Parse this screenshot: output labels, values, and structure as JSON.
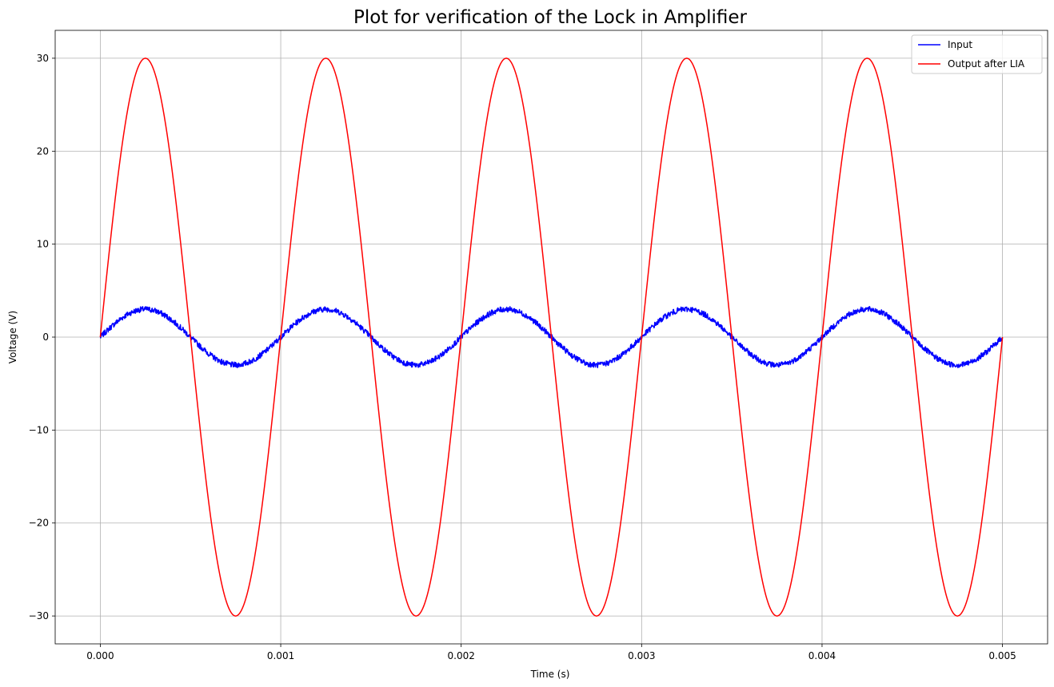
{
  "chart_data": {
    "type": "line",
    "title": "Plot for verification of the Lock in Amplifier",
    "xlabel": "Time (s)",
    "ylabel": "Voltage (V)",
    "xlim": [
      -0.00025,
      0.00525
    ],
    "ylim": [
      -33,
      33
    ],
    "x_ticks": [
      0.0,
      0.001,
      0.002,
      0.003,
      0.004,
      0.005
    ],
    "x_tick_labels": [
      "0.000",
      "0.001",
      "0.002",
      "0.003",
      "0.004",
      "0.005"
    ],
    "y_ticks": [
      -30,
      -20,
      -10,
      0,
      10,
      20,
      30
    ],
    "y_tick_labels": [
      "−30",
      "−20",
      "−10",
      "0",
      "10",
      "20",
      "30"
    ],
    "grid": true,
    "legend_position": "upper-right",
    "x_range": [
      0,
      0.005
    ],
    "series": [
      {
        "name": "Input",
        "color": "#0000ff",
        "waveform": "sine",
        "frequency_hz": 1000,
        "amplitude": 3.0,
        "noise_amplitude": 0.3,
        "sample_points": [
          [
            0.0,
            0.0
          ],
          [
            0.00025,
            3.0
          ],
          [
            0.0005,
            0.0
          ],
          [
            0.00075,
            -3.0
          ],
          [
            0.001,
            0.0
          ],
          [
            0.00125,
            3.0
          ],
          [
            0.0015,
            0.0
          ],
          [
            0.00175,
            -3.0
          ],
          [
            0.002,
            0.0
          ],
          [
            0.00225,
            3.0
          ],
          [
            0.0025,
            0.0
          ],
          [
            0.00275,
            -3.0
          ],
          [
            0.003,
            0.0
          ],
          [
            0.00325,
            3.0
          ],
          [
            0.0035,
            0.0
          ],
          [
            0.00375,
            -3.0
          ],
          [
            0.004,
            0.0
          ],
          [
            0.00425,
            3.0
          ],
          [
            0.0045,
            0.0
          ],
          [
            0.00475,
            -3.0
          ],
          [
            0.005,
            0.0
          ]
        ]
      },
      {
        "name": "Output after LIA",
        "color": "#ff0000",
        "waveform": "sine",
        "frequency_hz": 1000,
        "amplitude": 30.0,
        "noise_amplitude": 0,
        "sample_points": [
          [
            0.0,
            0.0
          ],
          [
            0.00025,
            30.0
          ],
          [
            0.0005,
            0.0
          ],
          [
            0.00075,
            -30.0
          ],
          [
            0.001,
            0.0
          ],
          [
            0.00125,
            30.0
          ],
          [
            0.0015,
            0.0
          ],
          [
            0.00175,
            -30.0
          ],
          [
            0.002,
            0.0
          ],
          [
            0.00225,
            30.0
          ],
          [
            0.0025,
            0.0
          ],
          [
            0.00275,
            -30.0
          ],
          [
            0.003,
            0.0
          ],
          [
            0.00325,
            30.0
          ],
          [
            0.0035,
            0.0
          ],
          [
            0.00375,
            -30.0
          ],
          [
            0.004,
            0.0
          ],
          [
            0.00425,
            30.0
          ],
          [
            0.0045,
            0.0
          ],
          [
            0.00475,
            -30.0
          ],
          [
            0.005,
            0.0
          ]
        ]
      }
    ]
  }
}
